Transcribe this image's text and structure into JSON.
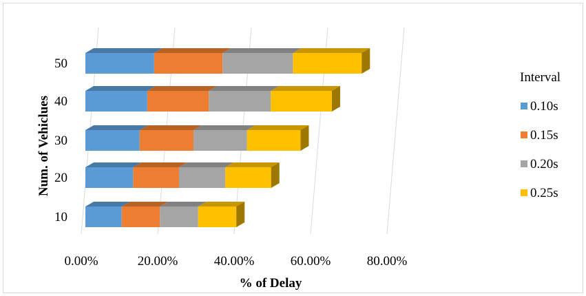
{
  "chart_data": {
    "type": "bar",
    "orientation": "horizontal",
    "stacked": true,
    "style": "3d",
    "categories": [
      "10",
      "20",
      "30",
      "40",
      "50"
    ],
    "series": [
      {
        "name": "0.10s",
        "color": "#5B9BD5",
        "values": [
          9.5,
          12.5,
          14.2,
          16.2,
          18.0
        ]
      },
      {
        "name": "0.15s",
        "color": "#ED7D31",
        "values": [
          10.0,
          12.0,
          14.1,
          16.1,
          17.9
        ]
      },
      {
        "name": "0.20s",
        "color": "#A5A5A5",
        "values": [
          10.0,
          12.1,
          14.0,
          16.2,
          18.4
        ]
      },
      {
        "name": "0.25s",
        "color": "#FFC000",
        "values": [
          10.0,
          12.0,
          14.0,
          16.0,
          18.0
        ]
      }
    ],
    "xlim": [
      0,
      80
    ],
    "xticks": [
      "0.00%",
      "20.00%",
      "40.00%",
      "60.00%",
      "80.00%"
    ],
    "xlabel": "% of Delay",
    "ylabel": "Num. of Vehiclues",
    "legend_title": "Interval",
    "legend_position": "right",
    "grid": "vertical"
  }
}
